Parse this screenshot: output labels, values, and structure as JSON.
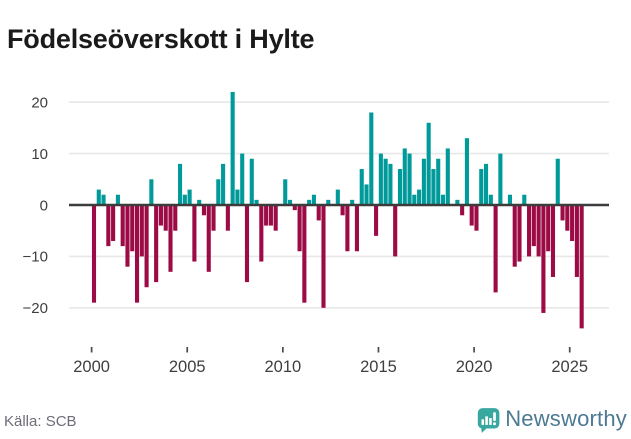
{
  "title": "Födelseöverskott i Hylte",
  "source_label": "Källa: SCB",
  "brand": {
    "name": "Newsworthy",
    "icon": "newsworthy-speech-bubble-bar-chart-icon",
    "icon_color": "#37a79f",
    "text_color": "#4d7a93"
  },
  "colors": {
    "positive_bar": "#009a9a",
    "negative_bar": "#9c0b45",
    "gridline": "#e8e8e8",
    "zero_line": "#3c3c3c",
    "axis_text": "#3f3f3f",
    "title_text": "#1a1a1a"
  },
  "chart_data": {
    "type": "bar",
    "title": "Födelseöverskott i Hylte",
    "xlabel": "",
    "ylabel": "",
    "frequency": "quarterly",
    "x_start": "2000-Q1",
    "x_end": "2025-Q3",
    "ylim": [
      -25,
      23
    ],
    "grid": "horizontal",
    "legend": "none",
    "positive_color": "#009a9a",
    "negative_color": "#9c0b45",
    "y_ticks": [
      {
        "v": 20,
        "label": "20"
      },
      {
        "v": 10,
        "label": "10"
      },
      {
        "v": 0,
        "label": "0"
      },
      {
        "v": -10,
        "label": "−10"
      },
      {
        "v": -20,
        "label": "−20"
      }
    ],
    "x_tick_labels": [
      "2000",
      "2005",
      "2010",
      "2015",
      "2020",
      "2025"
    ],
    "x_tick_every_years": 5,
    "values": [
      -19,
      3,
      2,
      -8,
      -7,
      2,
      -8,
      -12,
      -9,
      -19,
      -10,
      -16,
      5,
      -15,
      -4,
      -5,
      -13,
      -5,
      8,
      2,
      3,
      -11,
      1,
      -2,
      -13,
      -5,
      5,
      8,
      -5,
      22,
      3,
      10,
      -15,
      9,
      1,
      -11,
      -4,
      -4,
      -5,
      0,
      5,
      1,
      -1,
      -9,
      -19,
      1,
      2,
      -3,
      -20,
      1,
      0,
      3,
      -2,
      -9,
      1,
      -9,
      7,
      4,
      18,
      -6,
      10,
      9,
      8,
      -10,
      7,
      11,
      10,
      2,
      3,
      9,
      16,
      7,
      9,
      2,
      11,
      0,
      1,
      -2,
      13,
      -4,
      -5,
      7,
      8,
      2,
      -17,
      10,
      0,
      2,
      -12,
      -11,
      2,
      -10,
      -8,
      -10,
      -21,
      -9,
      -14,
      9,
      -3,
      -5,
      -7,
      -14,
      -24
    ]
  }
}
